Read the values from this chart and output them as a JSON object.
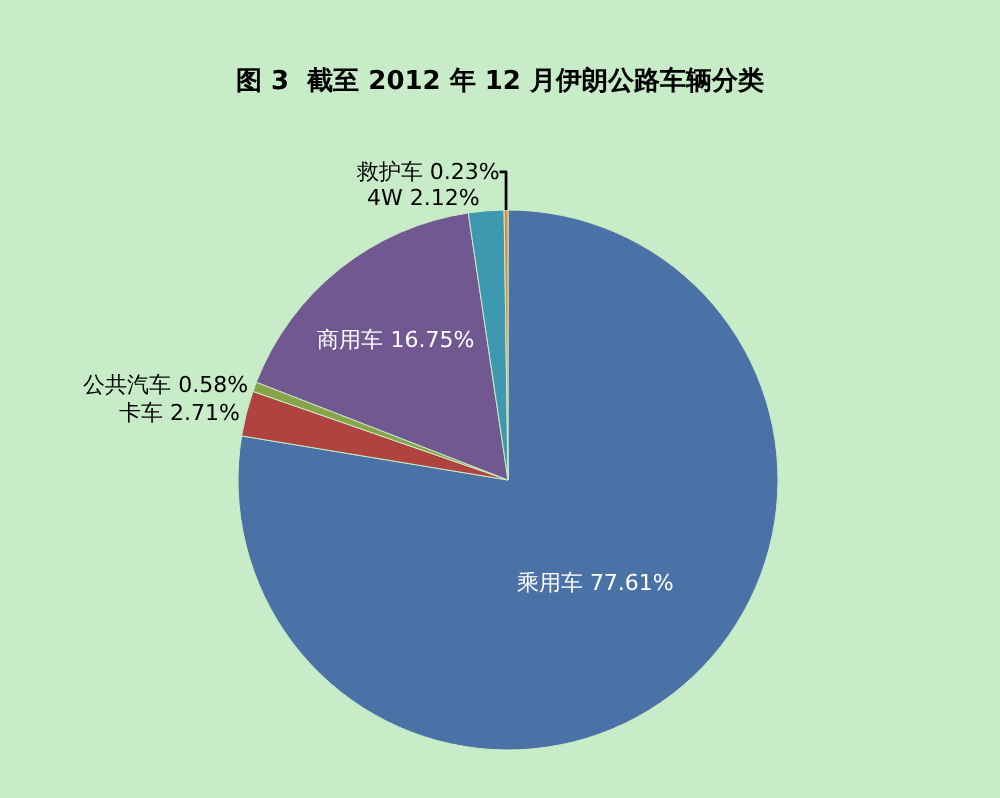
{
  "chart_data": {
    "type": "pie",
    "title": "图 3  截至 2012 年 12 月伊朗公路车辆分类",
    "categories": [
      "乘用车",
      "卡车",
      "公共汽车",
      "商用车",
      "4W",
      "救护车"
    ],
    "values": [
      77.61,
      2.71,
      0.58,
      16.75,
      2.12,
      0.23
    ],
    "colors": [
      "#4a72a6",
      "#b0423f",
      "#88a44a",
      "#715890",
      "#3d98b0",
      "#e08a35"
    ],
    "value_labels": [
      "77.61%",
      "2.71%",
      "0.58%",
      "16.75%",
      "2.12%",
      "0.23%"
    ],
    "legend": false
  }
}
